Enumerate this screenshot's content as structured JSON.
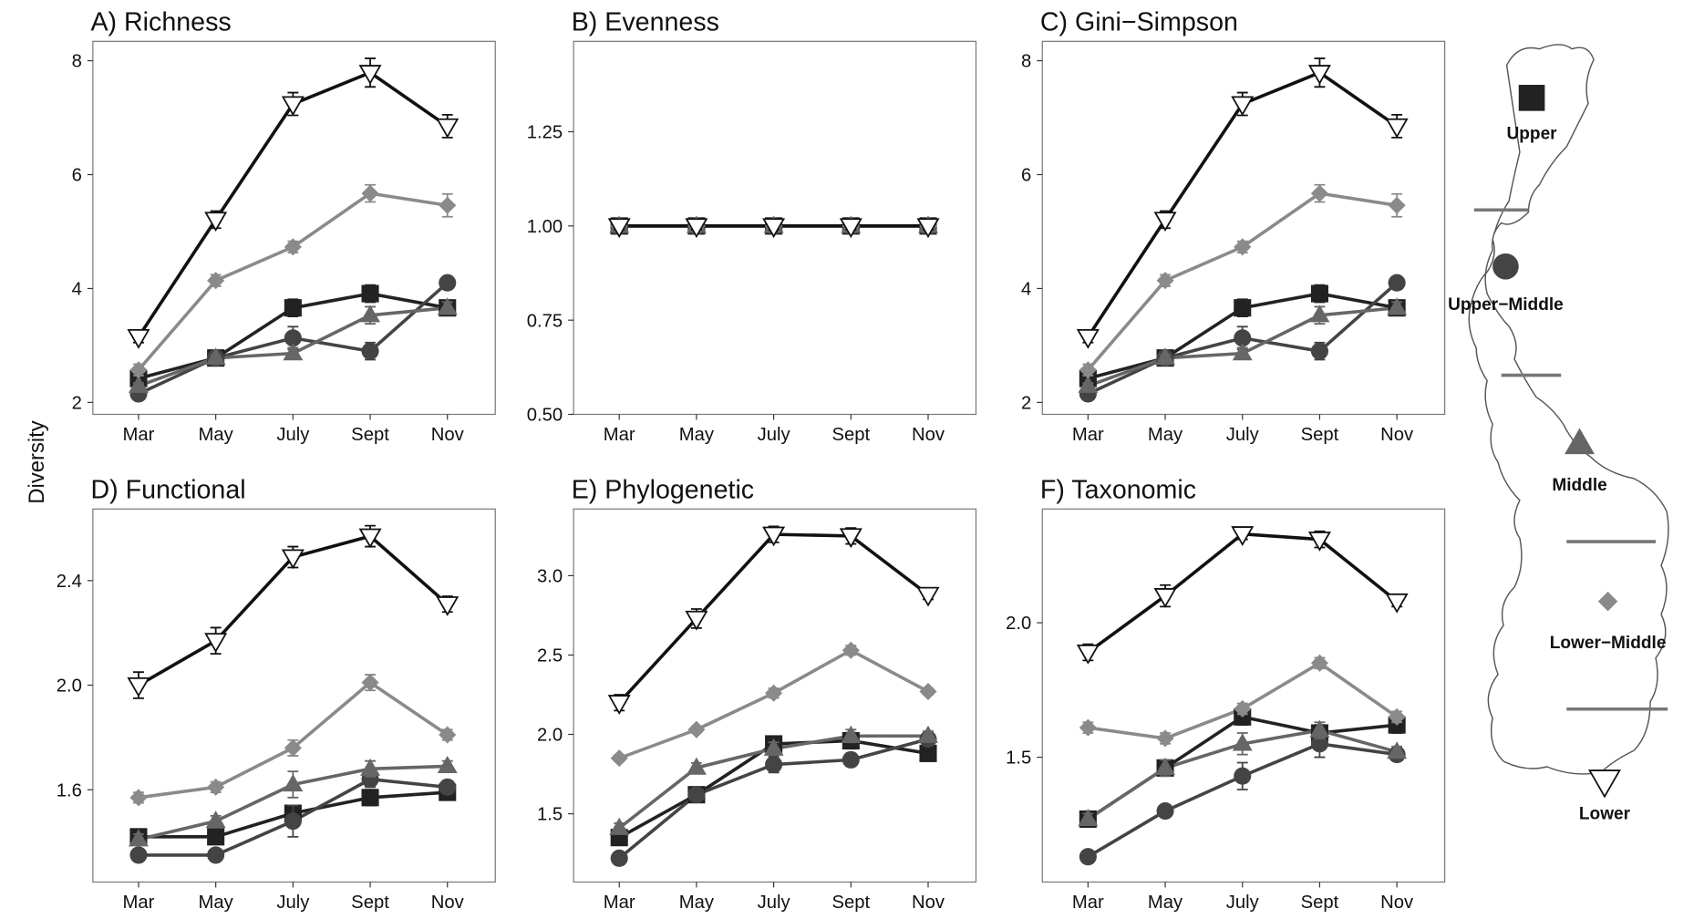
{
  "ylabel": "Diversity",
  "chart_data": [
    {
      "type": "line",
      "title": "A) Richness",
      "categories": [
        "Mar",
        "May",
        "July",
        "Sept",
        "Nov"
      ],
      "ylim": [
        1.79,
        8.34
      ],
      "yticks": [
        2,
        4,
        6,
        8
      ],
      "series": [
        {
          "name": "Upper",
          "color": "#222222",
          "marker": "square",
          "values": [
            2.42,
            2.78,
            3.66,
            3.91,
            3.66
          ],
          "errors": [
            0.05,
            0.05,
            0.15,
            0.15,
            0.1
          ]
        },
        {
          "name": "Upper−Middle",
          "color": "#444444",
          "marker": "circle",
          "values": [
            2.15,
            2.78,
            3.13,
            2.9,
            4.1
          ],
          "errors": [
            0.05,
            0.05,
            0.2,
            0.15,
            0.1
          ]
        },
        {
          "name": "Middle",
          "color": "#666666",
          "marker": "triangle",
          "values": [
            2.29,
            2.78,
            2.86,
            3.53,
            3.66
          ],
          "errors": [
            0.05,
            0.05,
            0.1,
            0.15,
            0.1
          ]
        },
        {
          "name": "Lower−Middle",
          "color": "#8a8a8a",
          "marker": "diamond",
          "values": [
            2.57,
            4.14,
            4.73,
            5.67,
            5.46
          ],
          "errors": [
            0.1,
            0.1,
            0.1,
            0.15,
            0.2
          ]
        },
        {
          "name": "Lower",
          "color": "#111111",
          "marker": "triangle-down",
          "values": [
            3.15,
            5.21,
            7.24,
            7.79,
            6.85
          ],
          "errors": [
            0.1,
            0.15,
            0.2,
            0.25,
            0.2
          ]
        }
      ]
    },
    {
      "type": "line",
      "title": "B) Evenness",
      "categories": [
        "Mar",
        "May",
        "July",
        "Sept",
        "Nov"
      ],
      "ylim": [
        0.5,
        1.49
      ],
      "yticks": [
        {
          "value": 0.5,
          "label": "0.50"
        },
        0.75,
        {
          "value": 1,
          "label": "1.00"
        },
        1.25
      ],
      "series": [
        {
          "name": "Upper",
          "color": "#222222",
          "marker": "square",
          "values": [
            1,
            1,
            1,
            1,
            1
          ],
          "errors": [
            0.01,
            0.01,
            0.01,
            0.01,
            0.01
          ]
        },
        {
          "name": "Upper−Middle",
          "color": "#444444",
          "marker": "circle",
          "values": [
            1,
            1,
            1,
            1,
            1
          ],
          "errors": [
            0.01,
            0.01,
            0.01,
            0.01,
            0.01
          ]
        },
        {
          "name": "Middle",
          "color": "#666666",
          "marker": "triangle",
          "values": [
            1,
            1,
            1,
            1,
            1
          ],
          "errors": [
            0.01,
            0.01,
            0.01,
            0.01,
            0.01
          ]
        },
        {
          "name": "Lower−Middle",
          "color": "#8a8a8a",
          "marker": "diamond",
          "values": [
            1,
            1,
            1,
            1,
            1
          ],
          "errors": [
            0.01,
            0.01,
            0.01,
            0.01,
            0.01
          ]
        },
        {
          "name": "Lower",
          "color": "#111111",
          "marker": "triangle-down",
          "values": [
            1,
            1,
            1,
            1,
            1
          ],
          "errors": [
            0.01,
            0.01,
            0.01,
            0.01,
            0.01
          ]
        }
      ]
    },
    {
      "type": "line",
      "title": "C) Gini−Simpson",
      "categories": [
        "Mar",
        "May",
        "July",
        "Sept",
        "Nov"
      ],
      "ylim": [
        1.79,
        8.34
      ],
      "yticks": [
        2,
        4,
        6,
        8
      ],
      "series": [
        {
          "name": "Upper",
          "color": "#222222",
          "marker": "square",
          "values": [
            2.42,
            2.78,
            3.66,
            3.91,
            3.66
          ],
          "errors": [
            0.05,
            0.05,
            0.15,
            0.15,
            0.1
          ]
        },
        {
          "name": "Upper−Middle",
          "color": "#444444",
          "marker": "circle",
          "values": [
            2.15,
            2.78,
            3.13,
            2.9,
            4.1
          ],
          "errors": [
            0.05,
            0.05,
            0.2,
            0.15,
            0.1
          ]
        },
        {
          "name": "Middle",
          "color": "#666666",
          "marker": "triangle",
          "values": [
            2.29,
            2.78,
            2.86,
            3.53,
            3.66
          ],
          "errors": [
            0.05,
            0.05,
            0.1,
            0.15,
            0.1
          ]
        },
        {
          "name": "Lower−Middle",
          "color": "#8a8a8a",
          "marker": "diamond",
          "values": [
            2.57,
            4.14,
            4.73,
            5.67,
            5.46
          ],
          "errors": [
            0.1,
            0.1,
            0.1,
            0.15,
            0.2
          ]
        },
        {
          "name": "Lower",
          "color": "#111111",
          "marker": "triangle-down",
          "values": [
            3.15,
            5.21,
            7.24,
            7.79,
            6.85
          ],
          "errors": [
            0.1,
            0.15,
            0.2,
            0.25,
            0.2
          ]
        }
      ]
    },
    {
      "type": "line",
      "title": "D) Functional",
      "categories": [
        "Mar",
        "May",
        "July",
        "Sept",
        "Nov"
      ],
      "ylim": [
        1.247,
        2.674
      ],
      "yticks": [
        1.6,
        {
          "value": 2,
          "label": "2.0"
        },
        2.4
      ],
      "series": [
        {
          "name": "Upper",
          "color": "#222222",
          "marker": "square",
          "values": [
            1.42,
            1.42,
            1.51,
            1.57,
            1.59
          ],
          "errors": [
            0.02,
            0.02,
            0.03,
            0.03,
            0.02
          ]
        },
        {
          "name": "Upper−Middle",
          "color": "#444444",
          "marker": "circle",
          "values": [
            1.35,
            1.35,
            1.48,
            1.64,
            1.61
          ],
          "errors": [
            0.02,
            0.02,
            0.06,
            0.03,
            0.02
          ]
        },
        {
          "name": "Middle",
          "color": "#666666",
          "marker": "triangle",
          "values": [
            1.41,
            1.48,
            1.62,
            1.68,
            1.69
          ],
          "errors": [
            0.02,
            0.02,
            0.05,
            0.03,
            0.02
          ]
        },
        {
          "name": "Lower−Middle",
          "color": "#8a8a8a",
          "marker": "diamond",
          "values": [
            1.57,
            1.61,
            1.76,
            2.01,
            1.81
          ],
          "errors": [
            0.02,
            0.02,
            0.03,
            0.03,
            0.02
          ]
        },
        {
          "name": "Lower",
          "color": "#111111",
          "marker": "triangle-down",
          "values": [
            2.0,
            2.17,
            2.49,
            2.57,
            2.31
          ],
          "errors": [
            0.05,
            0.05,
            0.04,
            0.04,
            0.03
          ]
        }
      ]
    },
    {
      "type": "line",
      "title": "E) Phylogenetic",
      "categories": [
        "Mar",
        "May",
        "July",
        "Sept",
        "Nov"
      ],
      "ylim": [
        1.07,
        3.42
      ],
      "yticks": [
        1.5,
        {
          "value": 2,
          "label": "2.0"
        },
        2.5,
        {
          "value": 3,
          "label": "3.0"
        }
      ],
      "series": [
        {
          "name": "Upper",
          "color": "#222222",
          "marker": "square",
          "values": [
            1.35,
            1.62,
            1.94,
            1.96,
            1.88
          ],
          "errors": [
            0.03,
            0.03,
            0.04,
            0.05,
            0.03
          ]
        },
        {
          "name": "Upper−Middle",
          "color": "#444444",
          "marker": "circle",
          "values": [
            1.22,
            1.62,
            1.81,
            1.84,
            1.97
          ],
          "errors": [
            0.03,
            0.03,
            0.05,
            0.04,
            0.03
          ]
        },
        {
          "name": "Middle",
          "color": "#666666",
          "marker": "triangle",
          "values": [
            1.41,
            1.79,
            1.91,
            1.99,
            1.99
          ],
          "errors": [
            0.03,
            0.03,
            0.04,
            0.04,
            0.03
          ]
        },
        {
          "name": "Lower−Middle",
          "color": "#8a8a8a",
          "marker": "diamond",
          "values": [
            1.85,
            2.03,
            2.26,
            2.53,
            2.27
          ],
          "errors": [
            0.02,
            0.02,
            0.03,
            0.03,
            0.02
          ]
        },
        {
          "name": "Lower",
          "color": "#111111",
          "marker": "triangle-down",
          "values": [
            2.2,
            2.73,
            3.26,
            3.25,
            2.88
          ],
          "errors": [
            0.05,
            0.06,
            0.05,
            0.05,
            0.03
          ]
        }
      ]
    },
    {
      "type": "line",
      "title": "F) Taxonomic",
      "categories": [
        "Mar",
        "May",
        "July",
        "Sept",
        "Nov"
      ],
      "ylim": [
        1.036,
        2.423
      ],
      "yticks": [
        1.5,
        {
          "value": 2,
          "label": "2.0"
        }
      ],
      "series": [
        {
          "name": "Upper",
          "color": "#222222",
          "marker": "square",
          "values": [
            1.27,
            1.46,
            1.65,
            1.59,
            1.62
          ],
          "errors": [
            0.02,
            0.03,
            0.03,
            0.03,
            0.03
          ]
        },
        {
          "name": "Upper−Middle",
          "color": "#444444",
          "marker": "circle",
          "values": [
            1.13,
            1.3,
            1.43,
            1.55,
            1.51
          ],
          "errors": [
            0.02,
            0.02,
            0.05,
            0.05,
            0.02
          ]
        },
        {
          "name": "Middle",
          "color": "#666666",
          "marker": "triangle",
          "values": [
            1.27,
            1.46,
            1.55,
            1.6,
            1.52
          ],
          "errors": [
            0.02,
            0.03,
            0.04,
            0.03,
            0.02
          ]
        },
        {
          "name": "Lower−Middle",
          "color": "#8a8a8a",
          "marker": "diamond",
          "values": [
            1.61,
            1.57,
            1.68,
            1.85,
            1.65
          ],
          "errors": [
            0.02,
            0.02,
            0.02,
            0.02,
            0.02
          ]
        },
        {
          "name": "Lower",
          "color": "#111111",
          "marker": "triangle-down",
          "values": [
            1.89,
            2.1,
            2.33,
            2.31,
            2.08
          ],
          "errors": [
            0.03,
            0.04,
            0.02,
            0.03,
            0.02
          ]
        }
      ]
    }
  ]
}
